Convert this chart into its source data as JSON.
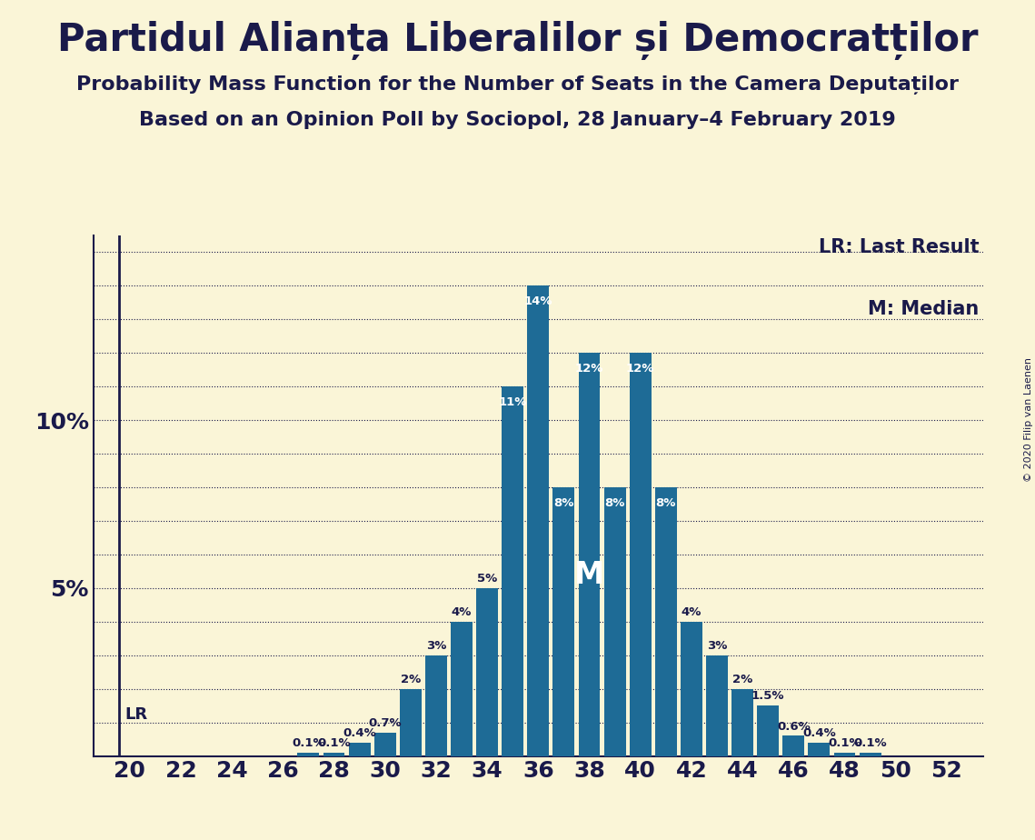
{
  "title1": "Partidul Alianța Liberalilor și Democratților",
  "title2": "Probability Mass Function for the Number of Seats in the Camera Deputaților",
  "title3": "Based on an Opinion Poll by Sociopol, 28 January–4 February 2019",
  "copyright": "© 2020 Filip van Laenen",
  "legend_lr": "LR: Last Result",
  "legend_m": "M: Median",
  "background_color": "#faf5d7",
  "bar_color": "#1e6b96",
  "text_color": "#1a1a4a",
  "seats": [
    20,
    21,
    22,
    23,
    24,
    25,
    26,
    27,
    28,
    29,
    30,
    31,
    32,
    33,
    34,
    35,
    36,
    37,
    38,
    39,
    40,
    41,
    42,
    43,
    44,
    45,
    46,
    47,
    48,
    49,
    50,
    51,
    52
  ],
  "probs": [
    0.0,
    0.0,
    0.0,
    0.0,
    0.0,
    0.0,
    0.0,
    0.1,
    0.1,
    0.4,
    0.7,
    2.0,
    3.0,
    4.0,
    5.0,
    11.0,
    14.0,
    8.0,
    12.0,
    8.0,
    12.0,
    8.0,
    4.0,
    3.0,
    2.0,
    1.5,
    0.6,
    0.4,
    0.1,
    0.1,
    0.0,
    0.0,
    0.0
  ],
  "lr_seat": 20,
  "median_seat": 38,
  "ylim_max": 15.5,
  "grid_color": "#1a1a4a",
  "bar_label_fontsize": 9.5
}
